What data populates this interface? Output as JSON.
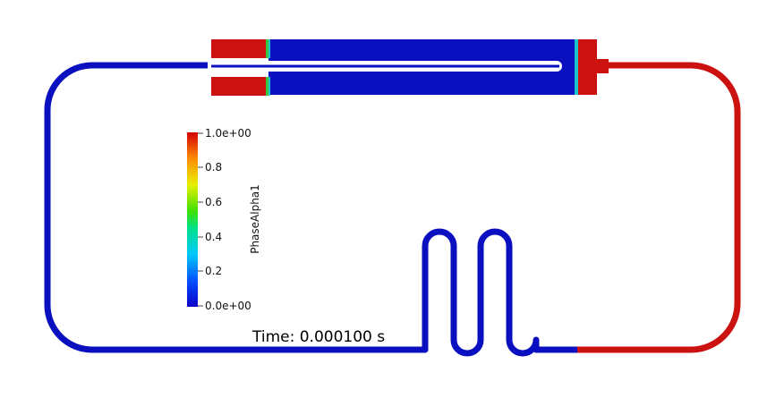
{
  "colors": {
    "background": "#ffffff",
    "liquid_low": "#0a10c0",
    "liquid_high": "#cc1111",
    "interface_green": "#3ec43e",
    "interface_cyan": "#19c6cc"
  },
  "colorbar": {
    "title": "PhaseAlpha1",
    "top_label": "1.0e+00",
    "bottom_label": "0.0e+00",
    "tick_labels": [
      "0.8",
      "0.6",
      "0.4",
      "0.2"
    ],
    "range": [
      0.0,
      1.0
    ],
    "colormap": "rainbow"
  },
  "time_annotation": "Time: 0.000100 s"
}
